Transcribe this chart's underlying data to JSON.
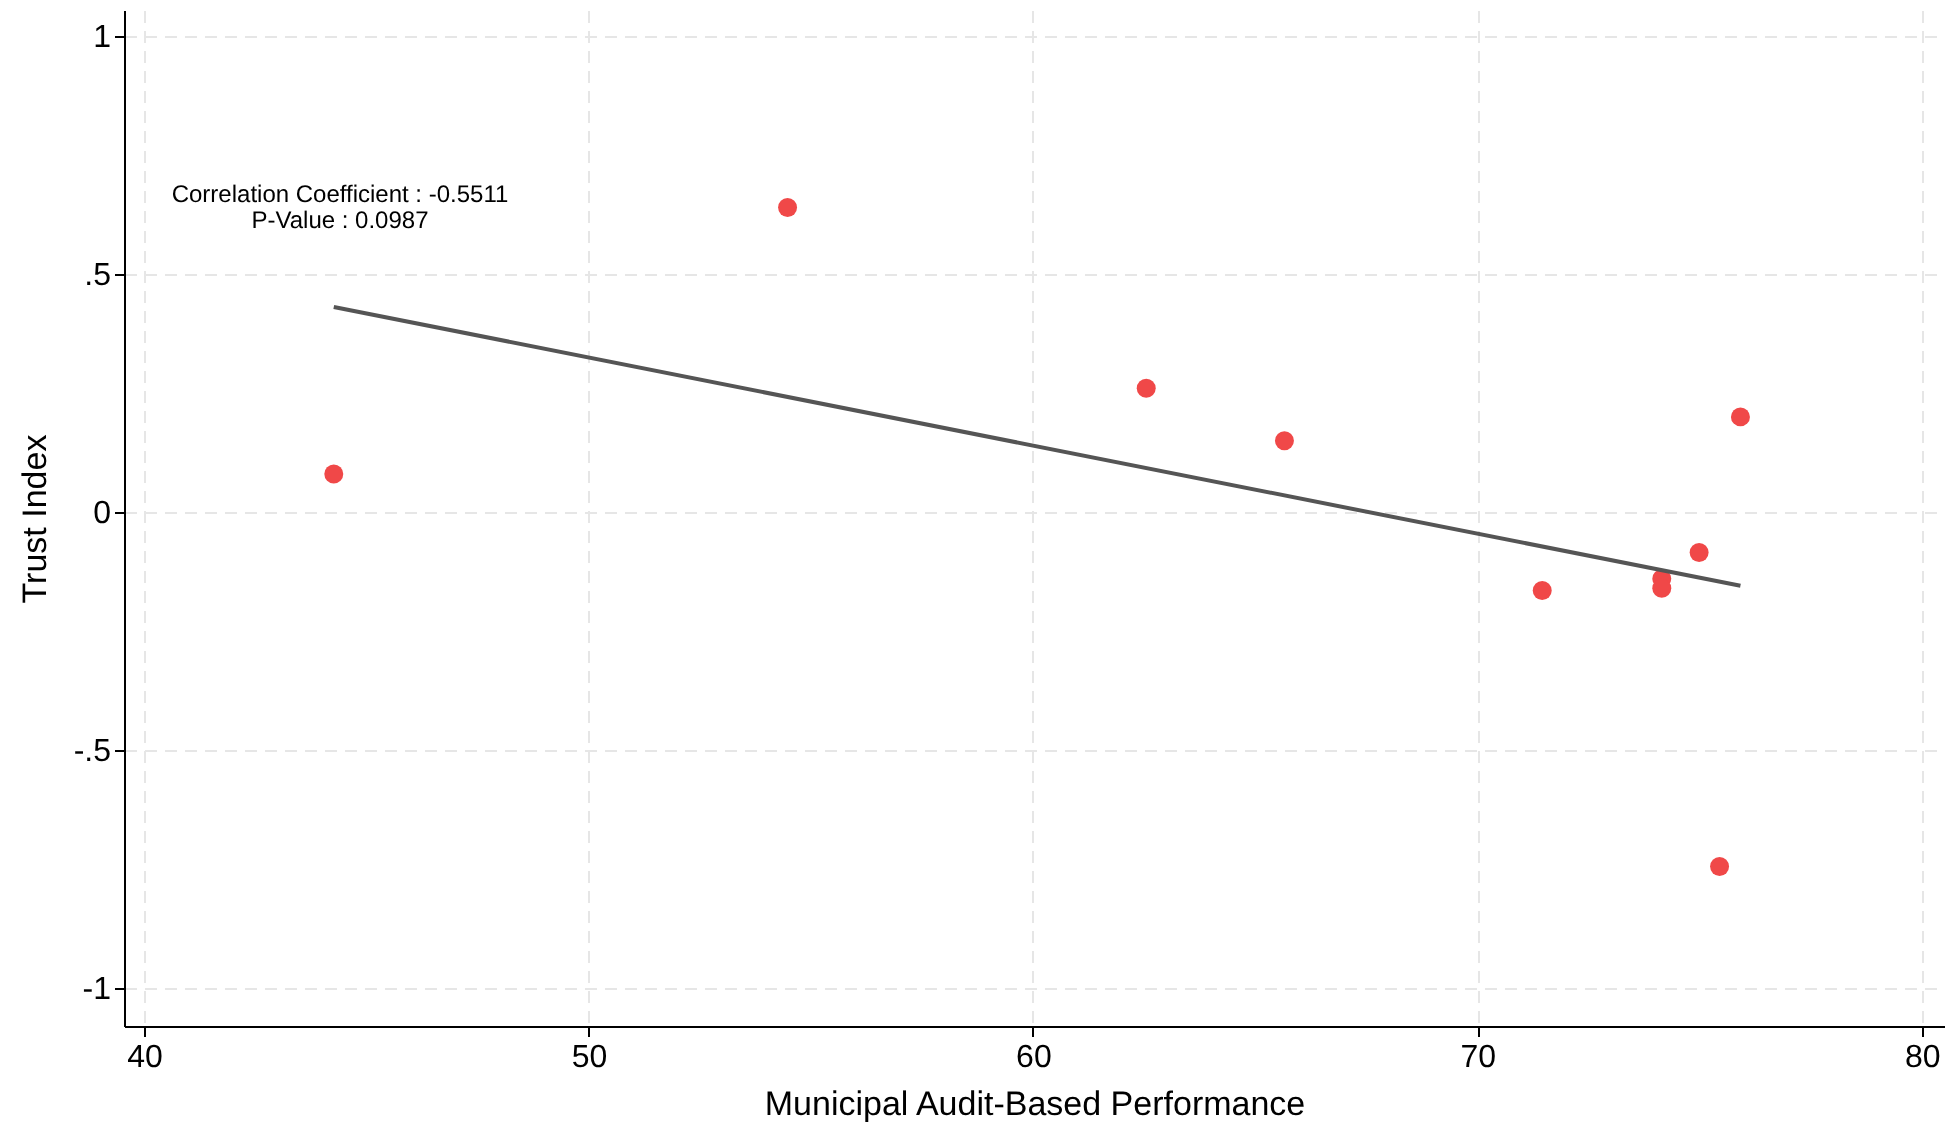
{
  "chart_data": {
    "type": "scatter",
    "xlabel": "Municipal Audit-Based Performance",
    "ylabel": "Trust Index",
    "annotations": [
      "Correlation Coefficient : -0.5511",
      "P-Value : 0.0987"
    ],
    "x": [
      44.27,
      54.48,
      62.55,
      65.66,
      71.46,
      74.15,
      74.15,
      74.99,
      75.45,
      75.92
    ],
    "series": [
      {
        "color": "#f04848",
        "marker": "circle",
        "values": [
          0.08,
          0.64,
          0.26,
          0.15,
          -0.165,
          -0.14,
          -0.16,
          -0.085,
          -0.745,
          0.2
        ]
      },
      {
        "type": "line",
        "color": "#555555",
        "x": [
          44.27,
          75.92
        ],
        "values": [
          0.431,
          -0.155
        ]
      }
    ],
    "xlim": [
      39.55,
      80.5
    ],
    "ylim": [
      -1.08,
      1.055
    ],
    "xticks": [
      40,
      50,
      60,
      70,
      80
    ],
    "yticks": [
      {
        "value": -1,
        "label": "-1"
      },
      {
        "value": -0.5,
        "label": "-.5"
      },
      0,
      {
        "value": 0.5,
        "label": ".5"
      },
      1
    ],
    "grid": true,
    "line_style": "solid"
  }
}
